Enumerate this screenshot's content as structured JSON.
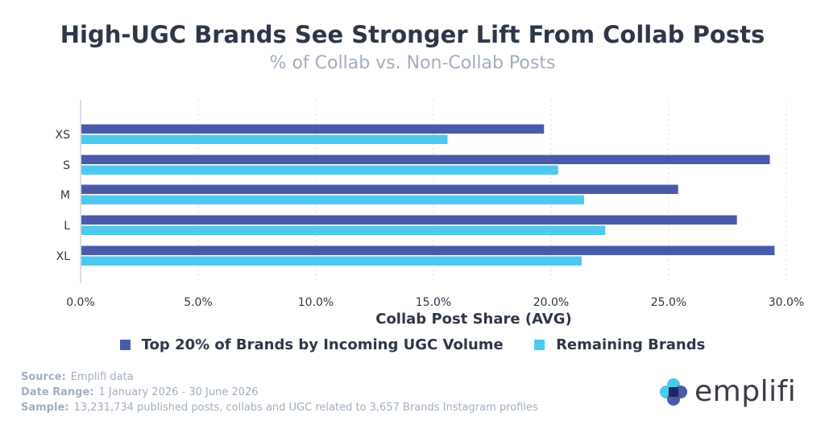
{
  "header": {
    "title": "High-UGC Brands See Stronger Lift From Collab Posts",
    "subtitle": "% of Collab vs. Non-Collab Posts"
  },
  "chart_data": {
    "type": "bar",
    "orientation": "horizontal",
    "categories": [
      "XS",
      "S",
      "M",
      "L",
      "XL"
    ],
    "series": [
      {
        "name": "Top 20% of Brands by Incoming UGC Volume",
        "color": "#4a5aab",
        "values": [
          19.7,
          29.3,
          25.4,
          27.9,
          29.5
        ]
      },
      {
        "name": "Remaining Brands",
        "color": "#4cc9ed",
        "values": [
          15.6,
          20.3,
          21.4,
          22.3,
          21.3
        ]
      }
    ],
    "xlabel": "Collab Post Share (AVG)",
    "xlim": [
      0,
      30
    ],
    "xticks": [
      "0.0%",
      "5.0%",
      "10.0%",
      "15.0%",
      "20.0%",
      "25.0%",
      "30.0%"
    ],
    "grid": "vertical dotted",
    "legend_position": "bottom"
  },
  "footer": {
    "source_label": "Source:",
    "source_value": "Emplifi data",
    "date_label": "Date Range:",
    "date_value": "1 January 2026 - 30 June 2026",
    "sample_label": "Sample:",
    "sample_value": "13,231,734 published posts, collabs and UGC related to 3,657 Brands Instagram profiles"
  },
  "logo": {
    "text": "emplifi",
    "icon": "emplifi-logo-icon"
  }
}
